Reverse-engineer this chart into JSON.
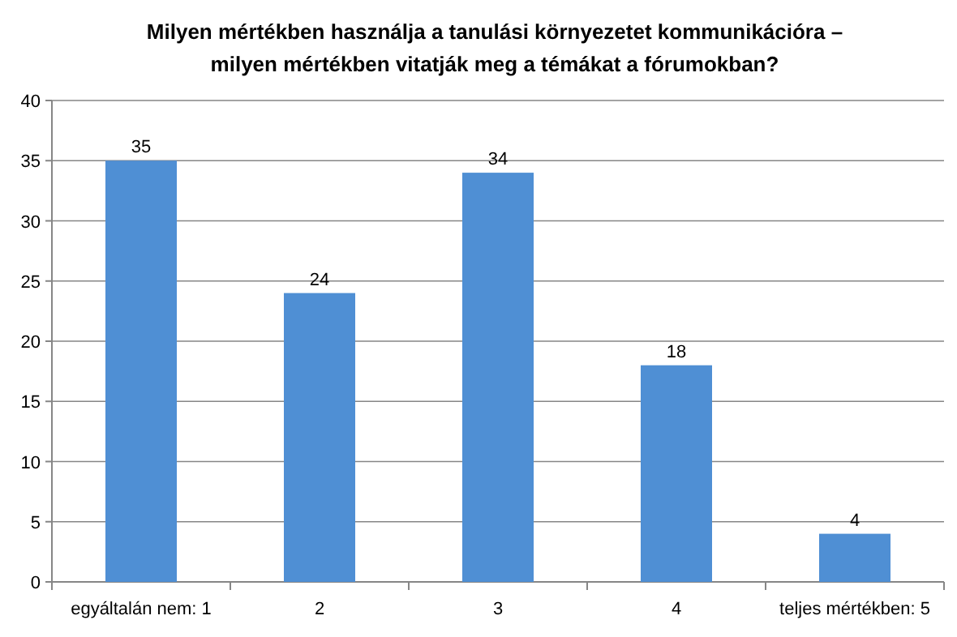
{
  "chart_data": {
    "type": "bar",
    "title": "Milyen mértékben használja a tanulási környezetet kommunikációra –\nmilyen mértékben vitatják meg a témákat a fórumokban?",
    "categories": [
      "egyáltalán nem: 1",
      "2",
      "3",
      "4",
      "teljes mértékben: 5"
    ],
    "values": [
      35,
      24,
      34,
      18,
      4
    ],
    "color": "#4f8fd4",
    "ylim": [
      0,
      40
    ],
    "yticks": [
      0,
      5,
      10,
      15,
      20,
      25,
      30,
      35,
      40
    ],
    "grid": "y",
    "data_labels": true
  }
}
